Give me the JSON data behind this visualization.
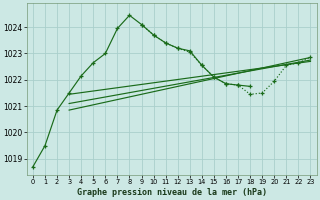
{
  "title": "Graphe pression niveau de la mer (hPa)",
  "bg_color": "#cce8e4",
  "grid_color": "#aacfcc",
  "line_color": "#1a6b1a",
  "xlim": [
    -0.5,
    23.5
  ],
  "ylim": [
    1018.4,
    1024.9
  ],
  "yticks": [
    1019,
    1020,
    1021,
    1022,
    1023,
    1024
  ],
  "xticks": [
    0,
    1,
    2,
    3,
    4,
    5,
    6,
    7,
    8,
    9,
    10,
    11,
    12,
    13,
    14,
    15,
    16,
    17,
    18,
    19,
    20,
    21,
    22,
    23
  ],
  "series": [
    {
      "x": [
        0,
        1,
        2,
        3,
        4,
        5,
        6,
        7,
        8,
        9,
        10,
        11,
        12,
        13,
        14,
        15,
        16,
        17,
        18
      ],
      "y": [
        1018.7,
        1019.5,
        1020.85,
        1021.5,
        1022.15,
        1022.65,
        1023.0,
        1023.95,
        1024.45,
        1024.1,
        1023.7,
        1023.4,
        1023.2,
        1023.1,
        1022.55,
        1022.1,
        1021.85,
        1021.8,
        1021.75
      ],
      "linestyle": "-",
      "marker": "+"
    },
    {
      "x": [
        9,
        10,
        11,
        12,
        13,
        14,
        15,
        16,
        17,
        18,
        19,
        20,
        21,
        22,
        23
      ],
      "y": [
        1024.1,
        1023.7,
        1023.4,
        1023.2,
        1023.05,
        1022.55,
        1022.1,
        1021.85,
        1021.8,
        1021.45,
        1021.5,
        1021.95,
        1022.55,
        1022.65,
        1022.85
      ],
      "linestyle": ":",
      "marker": "+"
    },
    {
      "x": [
        3,
        23
      ],
      "y": [
        1021.45,
        1022.7
      ],
      "linestyle": "-",
      "marker": null
    },
    {
      "x": [
        3,
        23
      ],
      "y": [
        1021.1,
        1022.75
      ],
      "linestyle": "-",
      "marker": null
    },
    {
      "x": [
        3,
        23
      ],
      "y": [
        1020.85,
        1022.85
      ],
      "linestyle": "-",
      "marker": null
    }
  ]
}
